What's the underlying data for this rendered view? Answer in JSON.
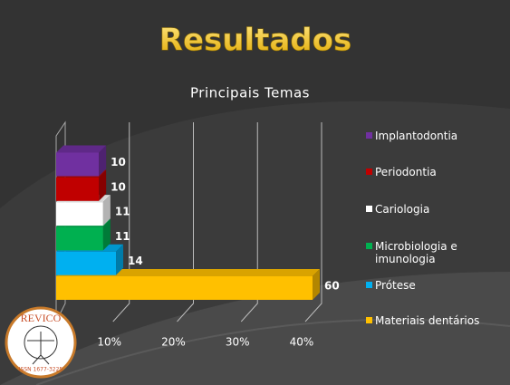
{
  "title": "Resultados",
  "logo": {
    "name": "REVICO",
    "issn": "ISSN 1677-3225"
  },
  "chart_data": {
    "type": "bar3d-horizontal",
    "title": "Principais Temas",
    "categories": [
      "Materiais dentários",
      "Prótese",
      "Microbiologia e imunologia",
      "Cariologia",
      "Periodontia",
      "Implantodontia"
    ],
    "values": [
      60,
      14,
      11,
      11,
      10,
      10
    ],
    "colors": [
      "#ffc000",
      "#00b0f0",
      "#00b050",
      "#ffffff",
      "#c00000",
      "#7030a0"
    ],
    "xlim": [
      0,
      60
    ],
    "xticks": [
      {
        "value": 15,
        "label": "10%"
      },
      {
        "value": 30,
        "label": "20%"
      },
      {
        "value": 45,
        "label": "30%"
      },
      {
        "value": 60,
        "label": "40%"
      }
    ],
    "grid": true
  }
}
